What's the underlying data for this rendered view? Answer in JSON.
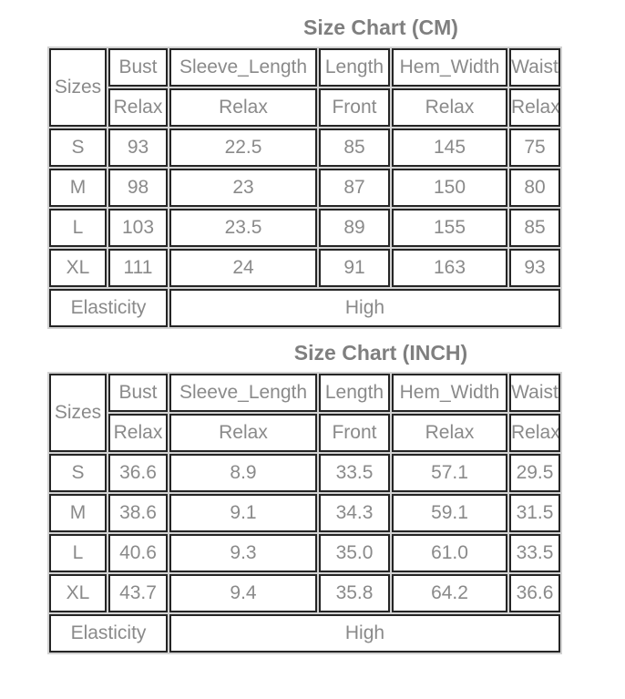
{
  "colors": {
    "page_background": "#ffffff",
    "title_text": "#7f7f7f",
    "cell_text": "#8a8a8a",
    "cell_border": "#252525",
    "grid_gap": "#d2d2d2",
    "cell_background": "#ffffff"
  },
  "tables": [
    {
      "title": "Size Chart (CM)",
      "unit": "CM",
      "corner_header": "Sizes",
      "columns": [
        {
          "label": "Bust",
          "sub": "Relax"
        },
        {
          "label": "Sleeve_Length",
          "sub": "Relax"
        },
        {
          "label": "Length",
          "sub": "Front"
        },
        {
          "label": "Hem_Width",
          "sub": "Relax"
        },
        {
          "label": "Waist",
          "sub": "Relax"
        }
      ],
      "rows": [
        {
          "size": "S",
          "values": [
            "93",
            "22.5",
            "85",
            "145",
            "75"
          ]
        },
        {
          "size": "M",
          "values": [
            "98",
            "23",
            "87",
            "150",
            "80"
          ]
        },
        {
          "size": "L",
          "values": [
            "103",
            "23.5",
            "89",
            "155",
            "85"
          ]
        },
        {
          "size": "XL",
          "values": [
            "111",
            "24",
            "91",
            "163",
            "93"
          ]
        }
      ],
      "footer": {
        "label": "Elasticity",
        "value": "High"
      }
    },
    {
      "title": "Size Chart (INCH)",
      "unit": "INCH",
      "corner_header": "Sizes",
      "columns": [
        {
          "label": "Bust",
          "sub": "Relax"
        },
        {
          "label": "Sleeve_Length",
          "sub": "Relax"
        },
        {
          "label": "Length",
          "sub": "Front"
        },
        {
          "label": "Hem_Width",
          "sub": "Relax"
        },
        {
          "label": "Waist",
          "sub": "Relax"
        }
      ],
      "rows": [
        {
          "size": "S",
          "values": [
            "36.6",
            "8.9",
            "33.5",
            "57.1",
            "29.5"
          ]
        },
        {
          "size": "M",
          "values": [
            "38.6",
            "9.1",
            "34.3",
            "59.1",
            "31.5"
          ]
        },
        {
          "size": "L",
          "values": [
            "40.6",
            "9.3",
            "35.0",
            "61.0",
            "33.5"
          ]
        },
        {
          "size": "XL",
          "values": [
            "43.7",
            "9.4",
            "35.8",
            "64.2",
            "36.6"
          ]
        }
      ],
      "footer": {
        "label": "Elasticity",
        "value": "High"
      }
    }
  ]
}
